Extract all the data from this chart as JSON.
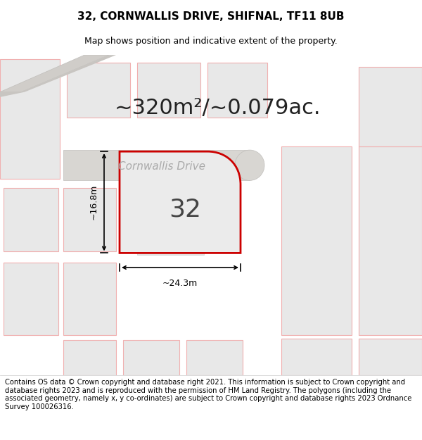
{
  "title_line1": "32, CORNWALLIS DRIVE, SHIFNAL, TF11 8UB",
  "title_line2": "Map shows position and indicative extent of the property.",
  "area_text": "~320m²/~0.079ac.",
  "street_name": "Cornwallis Drive",
  "plot_number": "32",
  "dim_width": "~24.3m",
  "dim_height": "~16.8m",
  "footer_text": "Contains OS data © Crown copyright and database right 2021. This information is subject to Crown copyright and database rights 2023 and is reproduced with the permission of HM Land Registry. The polygons (including the associated geometry, namely x, y co-ordinates) are subject to Crown copyright and database rights 2023 Ordnance Survey 100026316.",
  "map_bg": "#f7f6f4",
  "plot_fill": "#ebebeb",
  "plot_edge": "#cc0000",
  "neighbor_fill": "#e8e8e8",
  "neighbor_edge": "#f0b0b0",
  "road_fill": "#d8d6d2",
  "road_edge": "#c0bebb",
  "title_fontsize": 11,
  "subtitle_fontsize": 9,
  "area_fontsize": 22,
  "street_fontsize": 11,
  "plot_num_fontsize": 26,
  "dim_fontsize": 9,
  "footer_fontsize": 7.2
}
